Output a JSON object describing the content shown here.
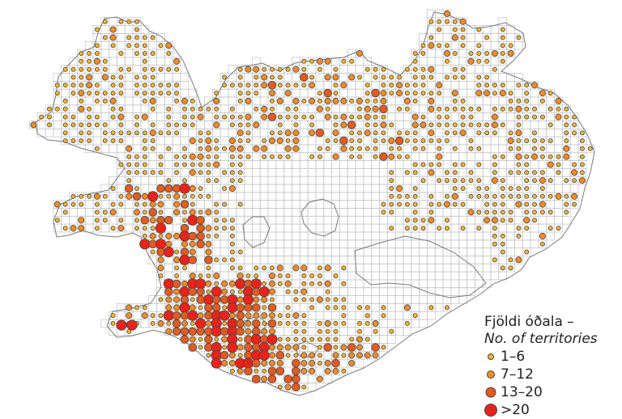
{
  "legend": {
    "title_is": "Fjöldi óðala –",
    "title_en": "No. of territories",
    "classes": [
      {
        "label": "1–6",
        "color": "#f7b42c"
      },
      {
        "label": "7–12",
        "color": "#f18b24"
      },
      {
        "label": "13–20",
        "color": "#e55a1e"
      },
      {
        "label": ">20",
        "color": "#e8231a"
      }
    ]
  },
  "style": {
    "grid_line": "#c8c8c8",
    "coast_line": "#7a7a7a",
    "symbol_outline": "#444444"
  },
  "map_data": {
    "grid_region": "Iceland",
    "symbols_by_class": {
      "1-6": "many",
      "7-12": "many",
      "13-20": "several",
      ">20": "few"
    }
  }
}
